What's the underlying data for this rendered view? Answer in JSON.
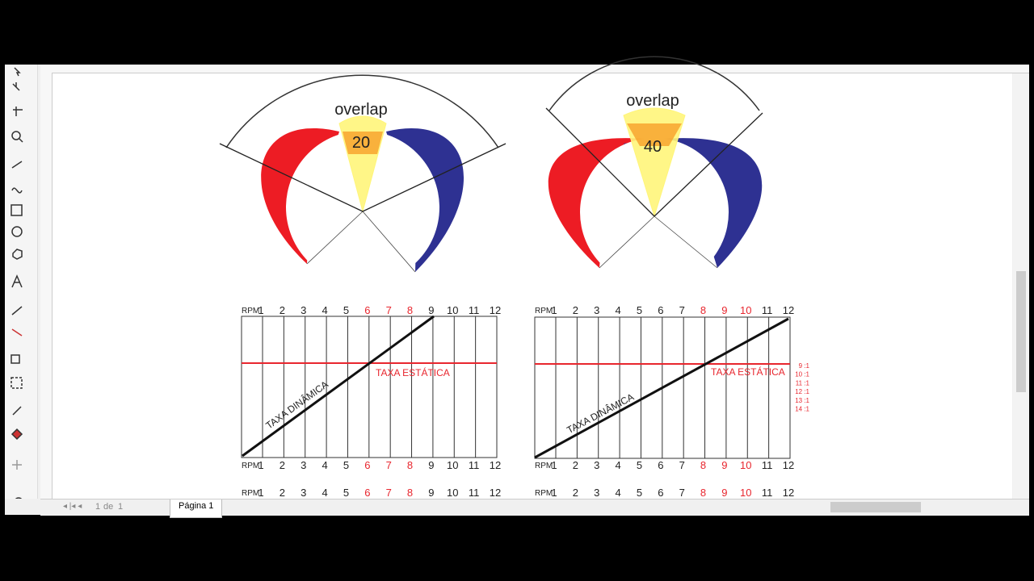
{
  "diagrams": [
    {
      "label": "overlap",
      "value": 20
    },
    {
      "label": "overlap",
      "value": 40
    }
  ],
  "charts": [
    {
      "rpm_label": "RPM",
      "rpm": [
        "1",
        "2",
        "3",
        "4",
        "5",
        "6",
        "7",
        "8",
        "9",
        "10",
        "11",
        "12"
      ],
      "rpm_red": [
        false,
        false,
        false,
        false,
        false,
        true,
        true,
        true,
        false,
        false,
        false,
        false
      ],
      "static_label": "TAXA ESTÁTICA",
      "dynamic_label": "TAXA DINÂMICA",
      "ratios": []
    },
    {
      "rpm_label": "RPM",
      "rpm": [
        "1",
        "2",
        "3",
        "4",
        "5",
        "6",
        "7",
        "8",
        "9",
        "10",
        "11",
        "12"
      ],
      "rpm_red": [
        false,
        false,
        false,
        false,
        false,
        false,
        false,
        true,
        true,
        true,
        false,
        false
      ],
      "static_label": "TAXA ESTÁTICA",
      "dynamic_label": "TAXA DINÂMICA",
      "ratios": [
        "9 :1",
        "10 :1",
        "11 :1",
        "12 :1",
        "13 :1",
        "14 :1"
      ]
    }
  ],
  "status": {
    "page_tab": "Página 1",
    "page_num": "1",
    "of": "de",
    "page_total": "1"
  }
}
